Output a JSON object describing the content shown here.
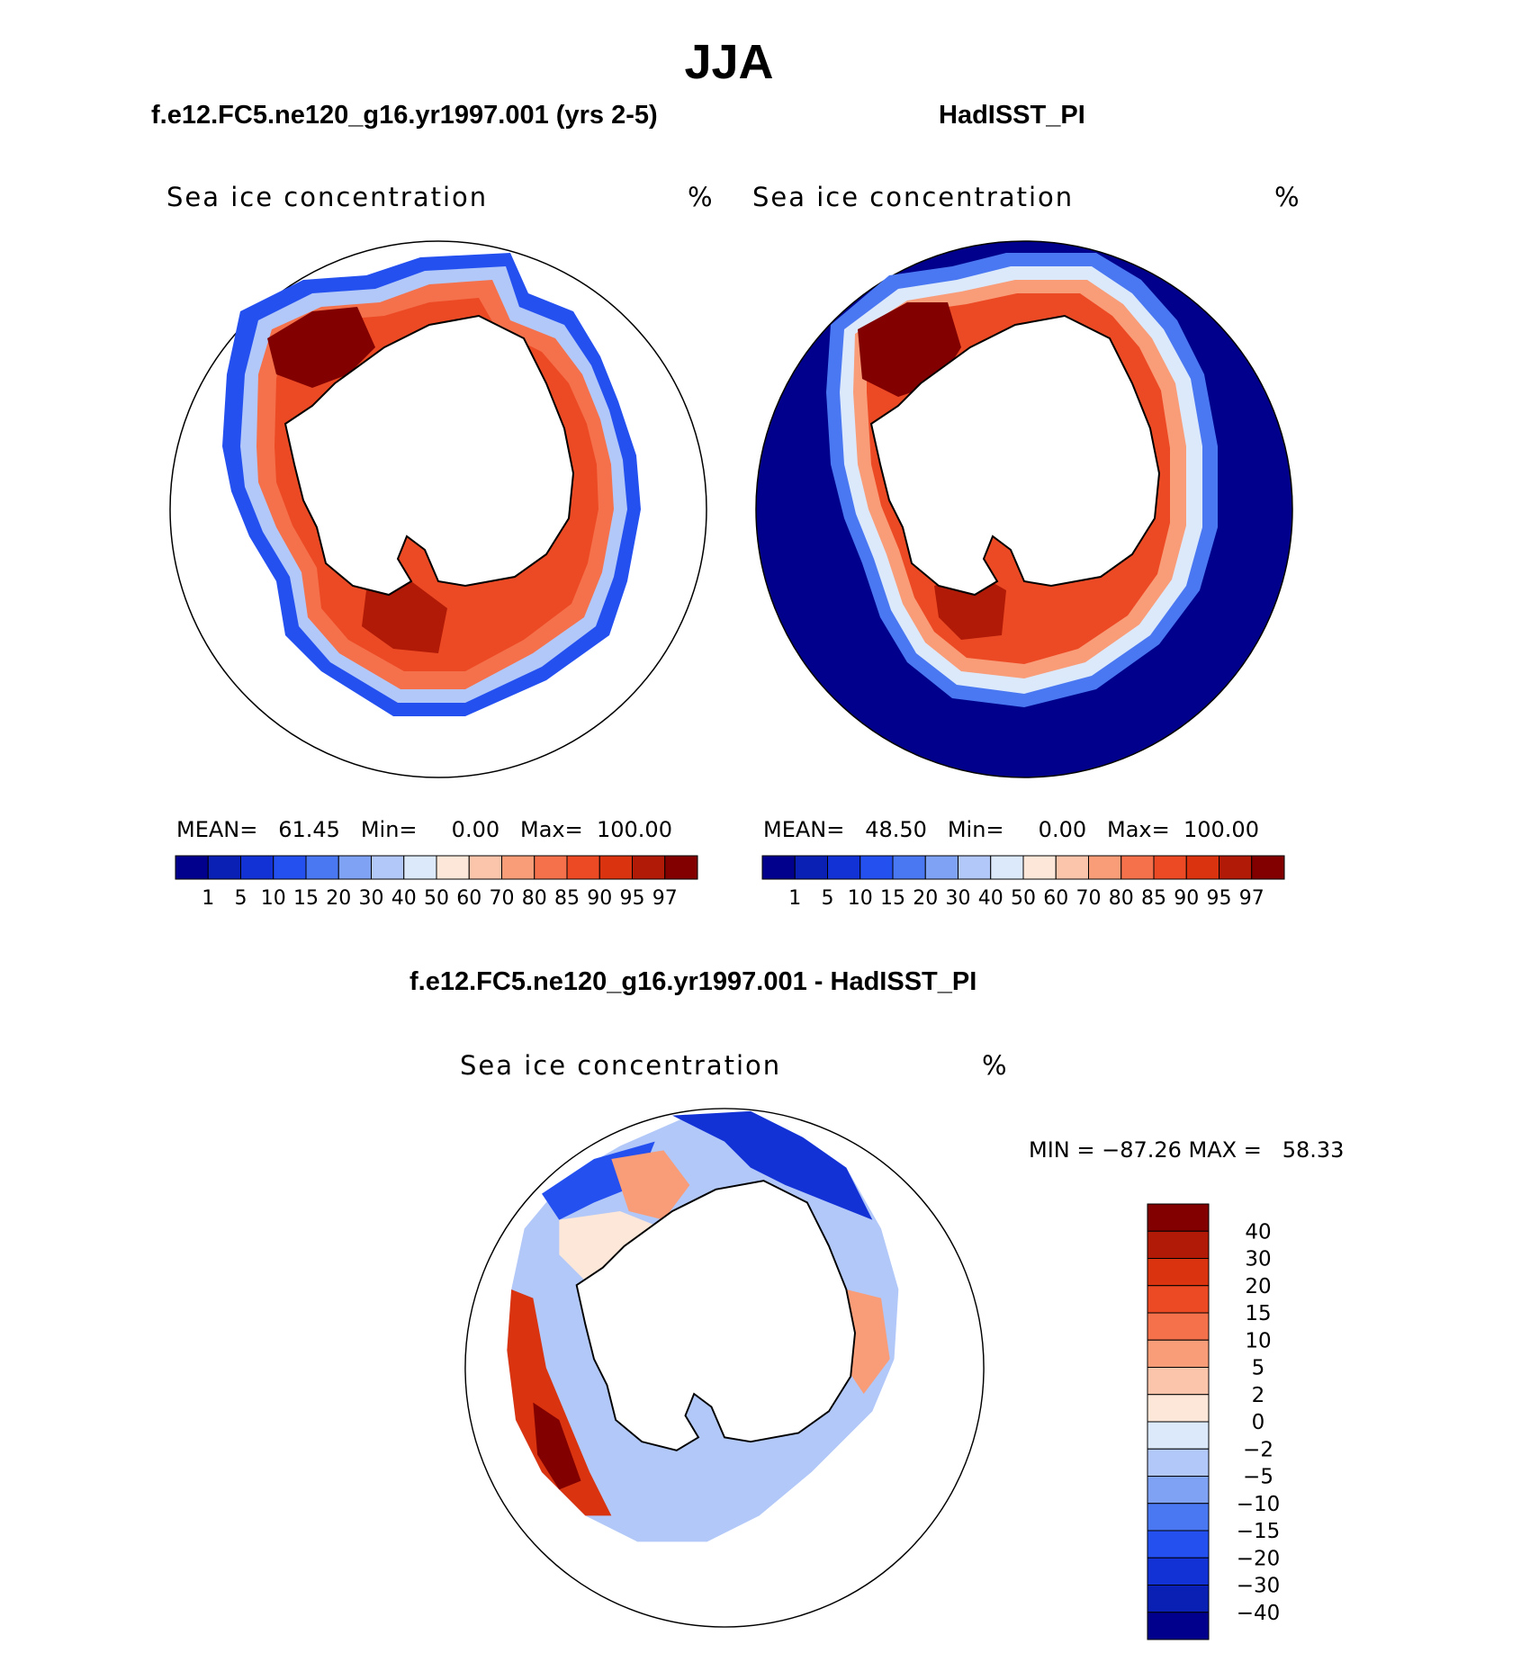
{
  "season": "JJA",
  "panels": [
    {
      "case_title": "f.e12.FC5.ne120_g16.yr1997.001 (yrs 2-5)",
      "variable": "Sea ice concentration",
      "unit": "%",
      "stats": "MEAN=   61.45   Min=     0.00   Max=  100.00"
    },
    {
      "case_title": "HadISST_PI",
      "variable": "Sea ice concentration",
      "unit": "%",
      "stats": "MEAN=   48.50   Min=     0.00   Max=  100.00"
    }
  ],
  "diff_panel": {
    "case_title": "f.e12.FC5.ne120_g16.yr1997.001 - HadISST_PI",
    "variable": "Sea ice concentration",
    "unit": "%",
    "stats": "MIN = −87.26 MAX =   58.33"
  },
  "colorbar_abs": {
    "labels": [
      "1",
      "5",
      "10",
      "15",
      "20",
      "30",
      "40",
      "50",
      "60",
      "70",
      "80",
      "85",
      "90",
      "95",
      "97"
    ],
    "colors": [
      "#00008c",
      "#0a1fb4",
      "#1232d6",
      "#2450f0",
      "#4a78f2",
      "#7fa2f5",
      "#b2c8f8",
      "#dce9fa",
      "#fde7d8",
      "#fbc5ab",
      "#f99c78",
      "#f5714b",
      "#ec4a24",
      "#d9340f",
      "#b01a06",
      "#820000"
    ]
  },
  "colorbar_diff": {
    "labels": [
      "40",
      "30",
      "20",
      "15",
      "10",
      "5",
      "2",
      "0",
      "−2",
      "−5",
      "−10",
      "−15",
      "−20",
      "−30",
      "−40"
    ],
    "colors": [
      "#820000",
      "#b01a06",
      "#d9340f",
      "#ec4a24",
      "#f5714b",
      "#f99c78",
      "#fbc5ab",
      "#fde7d8",
      "#dce9fa",
      "#b2c8f8",
      "#7fa2f5",
      "#4a78f2",
      "#2450f0",
      "#1232d6",
      "#0a1fb4",
      "#00008c"
    ]
  }
}
